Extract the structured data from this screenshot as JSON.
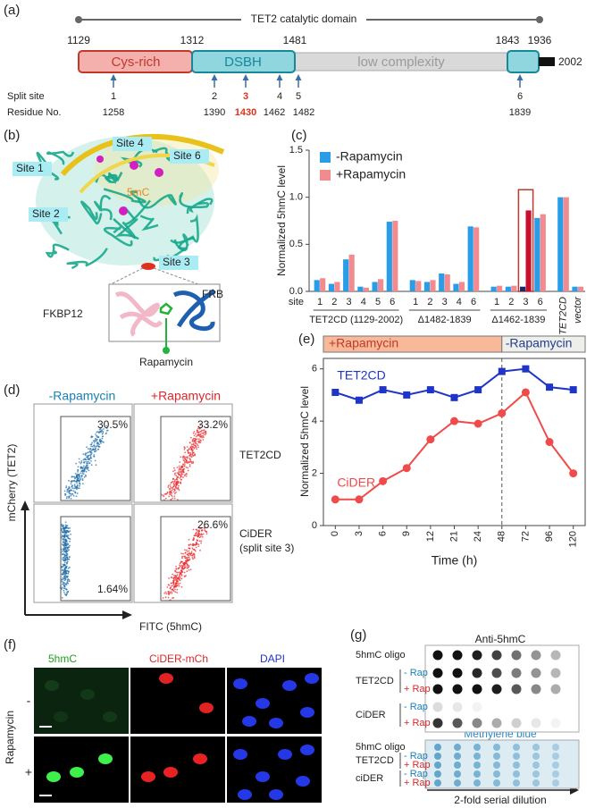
{
  "labels": [
    "(a)",
    "(b)",
    "(c)",
    "(d)",
    "(e)",
    "(f)",
    "(g)"
  ],
  "a": {
    "title": "TET2 catalytic domain",
    "boundaries": [
      1129,
      1312,
      1481,
      1843,
      1936
    ],
    "end": 2002,
    "domains": [
      "Cys-rich",
      "DSBH",
      "low complexity"
    ],
    "split_label": "Split site",
    "residue_label": "Residue No.",
    "sites": [
      "1",
      "2",
      "3",
      "4",
      "5",
      "6"
    ],
    "residues": [
      1258,
      1390,
      1430,
      1462,
      1482,
      1839
    ],
    "highlight_index": 2
  },
  "b": {
    "sites": [
      "Site 1",
      "Site 2",
      "Site 3",
      "Site 4",
      "Site 6"
    ],
    "ligand": "5mC",
    "inset": [
      "FKBP12",
      "FRB"
    ],
    "drug": "Rapamycin"
  },
  "chart_data": [
    {
      "type": "bar",
      "ylabel": "Normalized 5hmC level",
      "site_label": "site",
      "categories": [
        "1",
        "2",
        "3",
        "4",
        "5",
        "6",
        "1",
        "2",
        "3",
        "4",
        "6",
        "1",
        "2",
        "3",
        "6",
        "TET2CD",
        "vector"
      ],
      "groups": [
        "TET2CD (1129-2002)",
        "Δ1482-1839",
        "Δ1462-1839"
      ],
      "series": [
        {
          "name": "-Rapamycin",
          "color": "#2a9de8",
          "values": [
            0.12,
            0.08,
            0.34,
            0.05,
            0.1,
            0.74,
            0.12,
            0.1,
            0.19,
            0.08,
            0.69,
            0.05,
            0.05,
            0.05,
            0.78,
            1.0,
            0.05
          ]
        },
        {
          "name": "+Rapamycin",
          "color": "#f28b8f",
          "values": [
            0.14,
            0.1,
            0.39,
            0.04,
            0.13,
            0.75,
            0.11,
            0.12,
            0.18,
            0.1,
            0.68,
            0.06,
            0.06,
            0.86,
            0.82,
            1.0,
            0.05
          ]
        }
      ],
      "highlight": {
        "index": 13,
        "colors": [
          "#1c2a6b",
          "#c8102e"
        ],
        "box": "#c0392b"
      },
      "ylim": [
        0,
        1.5
      ],
      "yticks": [
        {
          "value": 0,
          "label": "0.0"
        },
        0.5,
        {
          "value": 1,
          "label": "1.0"
        },
        1.5
      ]
    },
    {
      "type": "line",
      "xlabel": "Time (h)",
      "ylabel": "Normalized 5hmC level",
      "categories": [
        "0",
        "3",
        "6",
        "9",
        "12",
        "21",
        "24",
        "48",
        "72",
        "96",
        "120"
      ],
      "phases": [
        {
          "label": "+Rapamycin",
          "start": "0",
          "end": "48",
          "color": "#f8b99a",
          "text_color": "#c0392b"
        },
        {
          "label": "-Rapamycin",
          "start": "48",
          "end": "120",
          "color": "#eeeeea",
          "text_color": "#1f3f8f"
        }
      ],
      "series": [
        {
          "name": "TET2CD",
          "color": "#1f35c8",
          "marker": "square",
          "values": [
            5.1,
            4.8,
            5.2,
            5.0,
            5.2,
            4.9,
            5.2,
            5.9,
            6.0,
            5.3,
            5.2
          ]
        },
        {
          "name": "CiDER",
          "color": "#f04a4a",
          "marker": "circle",
          "values": [
            1.0,
            1.0,
            1.7,
            2.2,
            3.3,
            4.0,
            3.9,
            4.3,
            5.1,
            3.2,
            2.0
          ]
        }
      ],
      "ylim": [
        0,
        6.4
      ],
      "yticks": [
        0,
        2,
        4,
        6
      ]
    }
  ],
  "d": {
    "conditions": [
      "-Rapamycin",
      "+Rapamycin"
    ],
    "gates": [
      "30.5%",
      "33.2%",
      "1.64%",
      "26.6%"
    ],
    "rows": [
      {
        "label": "TET2CD"
      },
      {
        "label": "CiDER",
        "note": "(split site 3)"
      }
    ],
    "ylabel": "mCherry (TET2)",
    "xlabel": "FITC (5hmC)"
  },
  "f": {
    "columns": [
      "5hmC",
      "CiDER-mCh",
      "DAPI"
    ],
    "treatment": "Rapamycin",
    "rows": [
      "-",
      "+"
    ]
  },
  "g": {
    "blots": [
      {
        "title": "Anti-5hmC",
        "sample": "5hmC oligo",
        "groups": [
          "TET2CD",
          "CiDER"
        ],
        "conditions": [
          "- Rap",
          "+ Rap"
        ]
      },
      {
        "title": "Methylene blue",
        "sample": "5hmC oligo",
        "groups": [
          "TET2CD",
          "ciDER"
        ],
        "conditions": [
          "- Rap",
          "+ Rap"
        ]
      }
    ],
    "dilution": "2-fold serial dilution"
  }
}
